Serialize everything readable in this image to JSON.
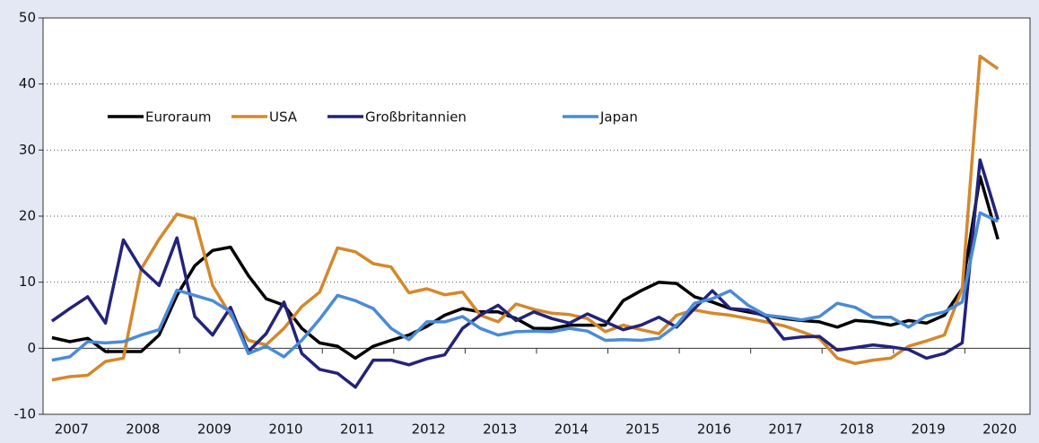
{
  "chart_data": {
    "type": "line",
    "categories": [
      "2007",
      null,
      null,
      null,
      "2008",
      null,
      null,
      null,
      "2009",
      null,
      null,
      null,
      "2010",
      null,
      null,
      null,
      "2011",
      null,
      null,
      null,
      "2012",
      null,
      null,
      null,
      "2013",
      null,
      null,
      null,
      "2014",
      null,
      null,
      null,
      "2015",
      null,
      null,
      null,
      "2016",
      null,
      null,
      null,
      "2017",
      null,
      null,
      null,
      "2018",
      null,
      null,
      null,
      "2019",
      null,
      null,
      null,
      "2020",
      null
    ],
    "series": [
      {
        "name": "Euroraum",
        "color": "#000000",
        "values": [
          1.6,
          1.0,
          1.5,
          -0.5,
          -0.5,
          -0.5,
          2,
          8,
          12.5,
          14.8,
          15.3,
          11,
          7.5,
          6.5,
          3,
          0.8,
          0.3,
          -1.5,
          0.3,
          1.2,
          2,
          3.3,
          5,
          6,
          5.5,
          5.5,
          4.5,
          3,
          3,
          3.5,
          3.5,
          3.5,
          7.2,
          8.7,
          10,
          9.8,
          7.8,
          7,
          6,
          5.5,
          5,
          4.5,
          4.2,
          4,
          3.2,
          4.2,
          4.0,
          3.5,
          4.2,
          3.8,
          5,
          9,
          26,
          16.5
        ]
      },
      {
        "name": "USA",
        "color": "#d4882c",
        "values": [
          -4.8,
          -4.3,
          -4.1,
          -2,
          -1.5,
          12,
          16.5,
          20.3,
          19.6,
          9.5,
          5,
          1.2,
          0.5,
          3,
          6.3,
          8.5,
          15.2,
          14.6,
          12.8,
          12.3,
          8.4,
          9,
          8.1,
          8.5,
          5,
          4,
          6.7,
          5.9,
          5.3,
          5.1,
          4.5,
          2.5,
          3.5,
          2.8,
          2.2,
          5,
          5.8,
          5.3,
          5,
          4.5,
          4,
          3.4,
          2.5,
          1.5,
          -1.5,
          -2.3,
          -1.8,
          -1.5,
          0.3,
          1.1,
          2,
          9,
          44.2,
          42.3
        ]
      },
      {
        "name": "Großbritannien",
        "color": "#23237a",
        "values": [
          4.1,
          6,
          7.8,
          3.8,
          16.4,
          12,
          9.5,
          16.7,
          4.8,
          2,
          6.2,
          -0.5,
          2.2,
          7,
          -0.8,
          -3.2,
          -3.8,
          -5.9,
          -1.8,
          -1.8,
          -2.5,
          -1.6,
          -1,
          3,
          5,
          6.5,
          4.2,
          5.5,
          4.5,
          3.8,
          5.2,
          4,
          2.8,
          3.5,
          4.7,
          3.2,
          6,
          8.7,
          6,
          5.8,
          4.8,
          1.4,
          1.7,
          1.8,
          -0.3,
          0.1,
          0.5,
          0.2,
          -0.2,
          -1.5,
          -0.8,
          0.8,
          28.5,
          19.5
        ]
      },
      {
        "name": "Japan",
        "color": "#4a8bd6",
        "values": [
          -1.8,
          -1.3,
          1,
          0.8,
          1,
          2,
          2.8,
          8.8,
          8,
          7.2,
          5.5,
          -0.8,
          0.3,
          -1.3,
          1.2,
          4.4,
          8,
          7.2,
          6,
          3,
          1.3,
          4,
          4,
          4.8,
          3,
          2,
          2.5,
          2.6,
          2.5,
          3,
          2.6,
          1.2,
          1.3,
          1.2,
          1.5,
          3.5,
          6.8,
          7.5,
          8.7,
          6.5,
          5,
          4.7,
          4.3,
          4.8,
          6.8,
          6.2,
          4.7,
          4.7,
          3.2,
          4.9,
          5.5,
          7,
          20.5,
          19.2
        ]
      }
    ],
    "ylim": [
      -10,
      50
    ],
    "yticks": [
      -10,
      0,
      10,
      20,
      30,
      40,
      50
    ],
    "grid": true,
    "legend": "upper left"
  }
}
